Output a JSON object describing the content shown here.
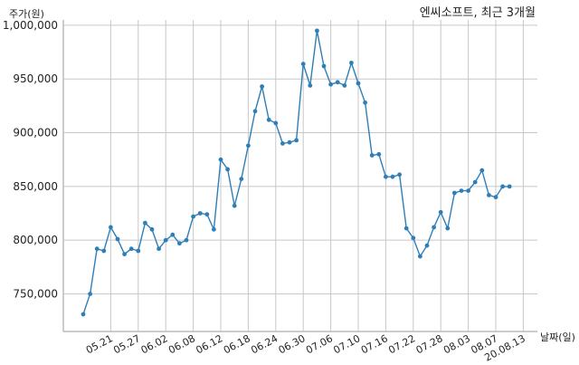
{
  "chart_data": {
    "type": "line",
    "title": "엔씨소프트, 최근 3개월",
    "xlabel": "날짜(일)",
    "ylabel": "주가(원)",
    "ylim": [
      715000,
      1005000
    ],
    "yticks": [
      750000,
      800000,
      850000,
      900000,
      950000,
      1000000
    ],
    "ytick_labels": [
      "750,000",
      "800,000",
      "850,000",
      "900,000",
      "950,000",
      "1,000,000"
    ],
    "grid": true,
    "color": "#2e7fb8",
    "xticks": [
      {
        "index": 4,
        "label": "05.21"
      },
      {
        "index": 8,
        "label": "05.27"
      },
      {
        "index": 12,
        "label": "06.02"
      },
      {
        "index": 16,
        "label": "06.08"
      },
      {
        "index": 20,
        "label": "06.12"
      },
      {
        "index": 24,
        "label": "06.18"
      },
      {
        "index": 28,
        "label": "06.24"
      },
      {
        "index": 32,
        "label": "06.30"
      },
      {
        "index": 36,
        "label": "07.06"
      },
      {
        "index": 40,
        "label": "07.10"
      },
      {
        "index": 44,
        "label": "07.16"
      },
      {
        "index": 48,
        "label": "07.22"
      },
      {
        "index": 52,
        "label": "07.28"
      },
      {
        "index": 56,
        "label": "08.03"
      },
      {
        "index": 60,
        "label": "08.07"
      },
      {
        "index": 64,
        "label": "20.08.13"
      }
    ],
    "values": [
      731000,
      750000,
      792000,
      790000,
      812000,
      801000,
      787000,
      792000,
      790000,
      816000,
      810000,
      792000,
      800000,
      805000,
      797000,
      800000,
      822000,
      825000,
      824000,
      810000,
      875000,
      866000,
      832000,
      857000,
      888000,
      920000,
      943000,
      912000,
      909000,
      890000,
      891000,
      893000,
      964000,
      944000,
      995000,
      962000,
      945000,
      947000,
      944000,
      965000,
      946000,
      928000,
      879000,
      880000,
      859000,
      859000,
      861000,
      811000,
      802000,
      785000,
      795000,
      812000,
      826000,
      811000,
      844000,
      846000,
      846000,
      854000,
      865000,
      842000,
      840000,
      850000,
      850000
    ]
  }
}
